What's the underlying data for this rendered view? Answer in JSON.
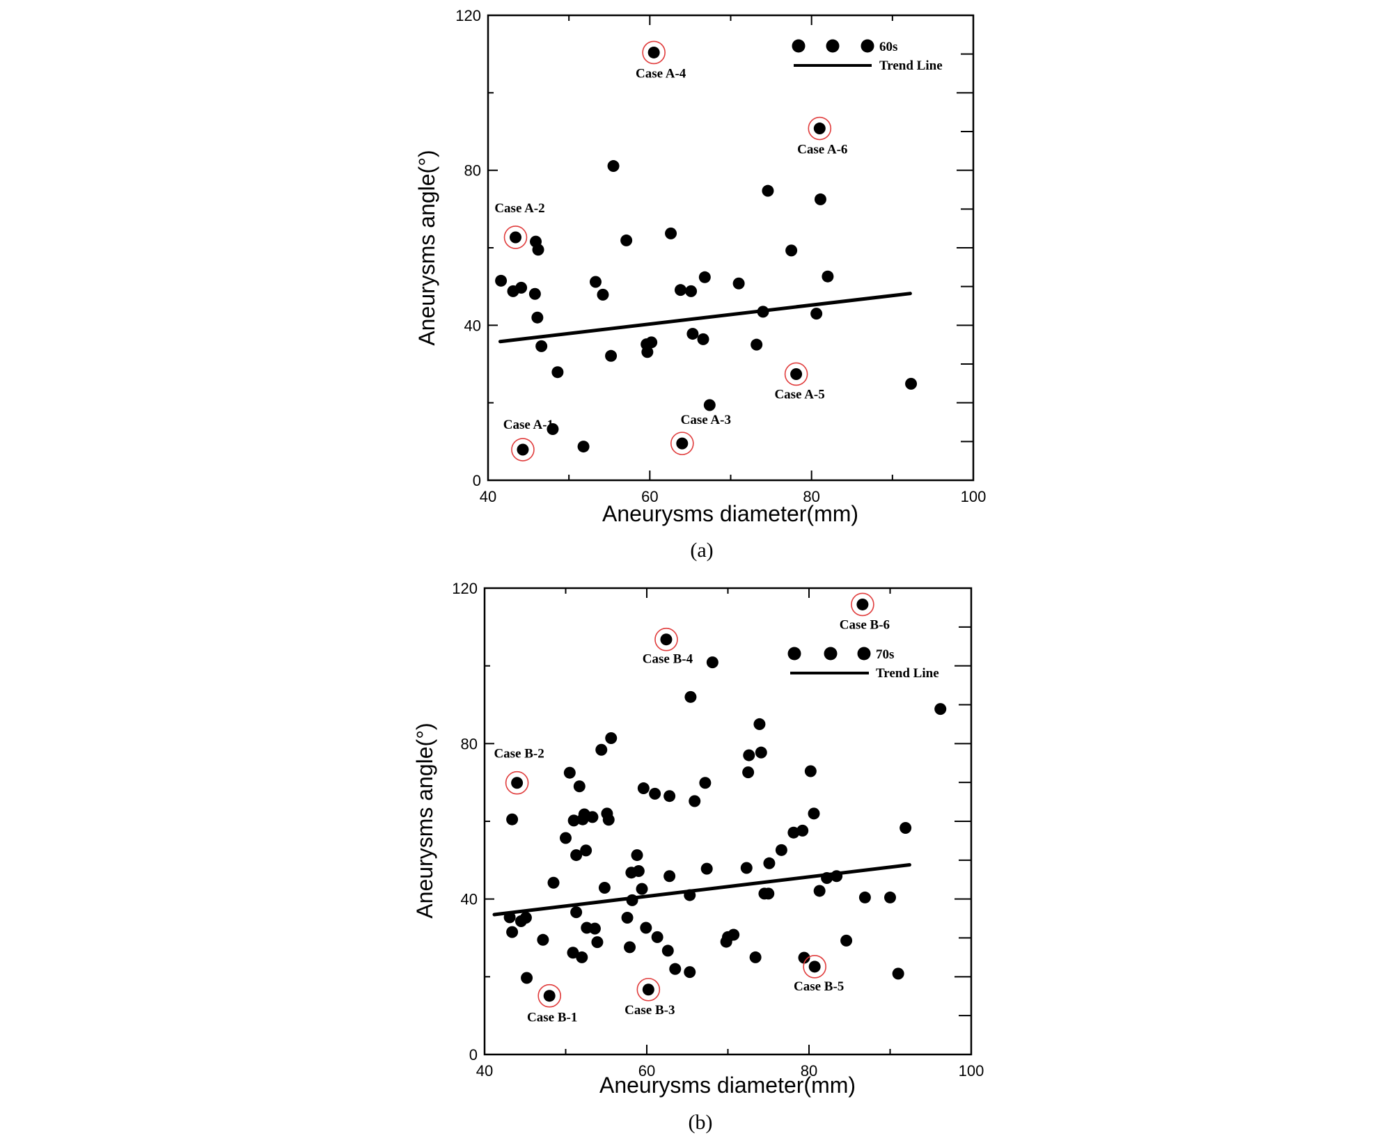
{
  "colors": {
    "marker": "#000000",
    "highlight": "#e03b3b",
    "axis": "#000000"
  },
  "chart_data": [
    {
      "type": "scatter",
      "panel_label": "(a)",
      "xlabel": "Aneurysms diameter(mm)",
      "ylabel": "Aneurysms angle(°)",
      "xlim": [
        40,
        100
      ],
      "ylim": [
        0,
        120
      ],
      "xticks": [
        "40",
        "60",
        "80",
        "100"
      ],
      "yticks": [
        "0",
        "40",
        "80",
        "120"
      ],
      "grid": false,
      "legend": {
        "placement": "top-right",
        "series_label": "60s",
        "trend_label": "Trend Line"
      },
      "series": [
        {
          "name": "60s",
          "points": [
            [
              41.6,
              51.5
            ],
            [
              43.1,
              48.8
            ],
            [
              44.1,
              49.7
            ],
            [
              45.9,
              61.6
            ],
            [
              46.2,
              59.5
            ],
            [
              45.8,
              48.1
            ],
            [
              46.1,
              42.0
            ],
            [
              46.6,
              34.6
            ],
            [
              48.0,
              13.2
            ],
            [
              48.6,
              27.9
            ],
            [
              51.8,
              8.7
            ],
            [
              53.3,
              51.2
            ],
            [
              54.2,
              47.9
            ],
            [
              55.2,
              32.1
            ],
            [
              55.5,
              81.1
            ],
            [
              57.1,
              61.9
            ],
            [
              59.6,
              35.1
            ],
            [
              59.7,
              33.1
            ],
            [
              60.2,
              35.6
            ],
            [
              62.6,
              63.7
            ],
            [
              63.8,
              49.1
            ],
            [
              65.1,
              48.8
            ],
            [
              65.3,
              37.8
            ],
            [
              66.6,
              36.4
            ],
            [
              66.8,
              52.4
            ],
            [
              67.4,
              19.4
            ],
            [
              71.0,
              50.8
            ],
            [
              73.2,
              35.0
            ],
            [
              74.0,
              43.5
            ],
            [
              74.6,
              74.7
            ],
            [
              77.5,
              59.3
            ],
            [
              80.6,
              43.0
            ],
            [
              81.1,
              72.5
            ],
            [
              82.0,
              52.6
            ],
            [
              92.3,
              24.9
            ],
            [
              44.3,
              7.9
            ],
            [
              43.4,
              62.7
            ],
            [
              64.0,
              9.5
            ],
            [
              60.5,
              110.4
            ],
            [
              78.1,
              27.4
            ],
            [
              81.0,
              90.8
            ]
          ]
        }
      ],
      "trend_line": [
        [
          41.5,
          35.8
        ],
        [
          92.2,
          48.2
        ]
      ],
      "annotations": [
        {
          "label": "Case A-1",
          "x": 44.3,
          "y": 7.9
        },
        {
          "label": "Case A-2",
          "x": 43.4,
          "y": 62.7
        },
        {
          "label": "Case A-3",
          "x": 64.0,
          "y": 9.5
        },
        {
          "label": "Case A-4",
          "x": 60.5,
          "y": 110.4
        },
        {
          "label": "Case A-5",
          "x": 78.1,
          "y": 27.4
        },
        {
          "label": "Case A-6",
          "x": 81.0,
          "y": 90.8
        }
      ]
    },
    {
      "type": "scatter",
      "panel_label": "(b)",
      "xlabel": "Aneurysms diameter(mm)",
      "ylabel": "Aneurysms angle(°)",
      "xlim": [
        40,
        100
      ],
      "ylim": [
        0,
        120
      ],
      "xticks": [
        "40",
        "60",
        "80",
        "100"
      ],
      "yticks": [
        "0",
        "40",
        "80",
        "120"
      ],
      "grid": false,
      "legend": {
        "placement": "top-right",
        "series_label": "70s",
        "trend_label": "Trend Line"
      },
      "series": [
        {
          "name": "70s",
          "points": [
            [
              43.1,
              35.3
            ],
            [
              43.4,
              31.5
            ],
            [
              44.5,
              34.3
            ],
            [
              45.1,
              35.2
            ],
            [
              43.4,
              60.5
            ],
            [
              45.2,
              19.7
            ],
            [
              47.2,
              29.5
            ],
            [
              48.5,
              44.2
            ],
            [
              50.0,
              55.7
            ],
            [
              50.5,
              72.5
            ],
            [
              50.9,
              26.2
            ],
            [
              51.0,
              60.2
            ],
            [
              51.3,
              51.3
            ],
            [
              51.3,
              36.6
            ],
            [
              51.7,
              69.0
            ],
            [
              52.0,
              25.0
            ],
            [
              52.1,
              60.5
            ],
            [
              52.3,
              61.8
            ],
            [
              52.5,
              52.5
            ],
            [
              52.6,
              32.6
            ],
            [
              53.3,
              61.1
            ],
            [
              53.6,
              32.4
            ],
            [
              53.9,
              28.9
            ],
            [
              54.4,
              78.4
            ],
            [
              54.8,
              42.9
            ],
            [
              55.1,
              62.0
            ],
            [
              55.3,
              60.4
            ],
            [
              55.6,
              81.4
            ],
            [
              57.6,
              35.2
            ],
            [
              57.9,
              27.6
            ],
            [
              58.2,
              39.7
            ],
            [
              58.1,
              46.8
            ],
            [
              58.8,
              51.3
            ],
            [
              59.0,
              47.2
            ],
            [
              59.4,
              42.6
            ],
            [
              59.6,
              68.5
            ],
            [
              59.9,
              32.6
            ],
            [
              61.0,
              67.1
            ],
            [
              61.3,
              30.2
            ],
            [
              62.6,
              26.7
            ],
            [
              62.8,
              66.5
            ],
            [
              62.8,
              45.9
            ],
            [
              63.5,
              22.0
            ],
            [
              65.3,
              41.0
            ],
            [
              65.3,
              21.2
            ],
            [
              65.4,
              92.0
            ],
            [
              65.9,
              65.2
            ],
            [
              67.2,
              69.9
            ],
            [
              67.4,
              47.8
            ],
            [
              68.1,
              100.9
            ],
            [
              69.8,
              29.0
            ],
            [
              70.0,
              30.2
            ],
            [
              70.7,
              30.8
            ],
            [
              72.3,
              48.0
            ],
            [
              72.5,
              72.6
            ],
            [
              72.6,
              77.0
            ],
            [
              73.4,
              25.0
            ],
            [
              73.9,
              85.0
            ],
            [
              74.1,
              77.7
            ],
            [
              74.5,
              41.4
            ],
            [
              75.0,
              41.4
            ],
            [
              75.1,
              49.2
            ],
            [
              76.6,
              52.6
            ],
            [
              78.1,
              57.1
            ],
            [
              79.2,
              57.6
            ],
            [
              79.4,
              24.9
            ],
            [
              80.2,
              72.9
            ],
            [
              80.6,
              62.0
            ],
            [
              81.3,
              42.1
            ],
            [
              82.2,
              45.4
            ],
            [
              83.4,
              45.9
            ],
            [
              84.6,
              29.3
            ],
            [
              86.9,
              40.4
            ],
            [
              90.0,
              40.4
            ],
            [
              91.0,
              20.8
            ],
            [
              91.9,
              58.3
            ],
            [
              96.2,
              88.9
            ],
            [
              48.0,
              15.1
            ],
            [
              44.0,
              69.9
            ],
            [
              60.2,
              16.7
            ],
            [
              62.4,
              106.8
            ],
            [
              80.7,
              22.6
            ],
            [
              86.6,
              115.8
            ]
          ]
        }
      ],
      "trend_line": [
        [
          41.2,
          36.0
        ],
        [
          92.4,
          48.8
        ]
      ],
      "annotations": [
        {
          "label": "Case B-1",
          "x": 48.0,
          "y": 15.1
        },
        {
          "label": "Case B-2",
          "x": 44.0,
          "y": 69.9
        },
        {
          "label": "Case B-3",
          "x": 60.2,
          "y": 16.7
        },
        {
          "label": "Case B-4",
          "x": 62.4,
          "y": 106.8
        },
        {
          "label": "Case B-5",
          "x": 80.7,
          "y": 22.6
        },
        {
          "label": "Case B-6",
          "x": 86.6,
          "y": 115.8
        }
      ]
    }
  ]
}
